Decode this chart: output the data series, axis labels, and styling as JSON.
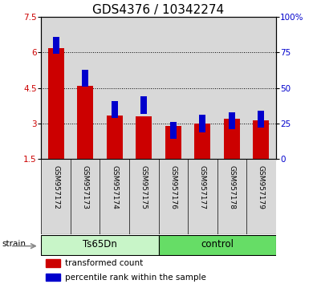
{
  "title": "GDS4376 / 10342274",
  "samples": [
    "GSM957172",
    "GSM957173",
    "GSM957174",
    "GSM957175",
    "GSM957176",
    "GSM957177",
    "GSM957178",
    "GSM957179"
  ],
  "red_values": [
    6.2,
    4.6,
    3.35,
    3.3,
    2.9,
    3.0,
    3.2,
    3.15
  ],
  "blue_values": [
    80,
    57,
    35,
    38,
    20,
    25,
    27,
    28
  ],
  "ylim_left": [
    1.5,
    7.5
  ],
  "ylim_right": [
    0,
    100
  ],
  "yticks_left": [
    1.5,
    3.0,
    4.5,
    6.0,
    7.5
  ],
  "yticks_right": [
    0,
    25,
    50,
    75,
    100
  ],
  "ytick_labels_left": [
    "1.5",
    "3",
    "4.5",
    "6",
    "7.5"
  ],
  "ytick_labels_right": [
    "0",
    "25",
    "50",
    "75",
    "100%"
  ],
  "group_info": [
    {
      "label": "Ts65Dn",
      "start": 0,
      "end": 3,
      "color": "#c8f5c8"
    },
    {
      "label": "control",
      "start": 4,
      "end": 7,
      "color": "#66dd66"
    }
  ],
  "strain_label": "strain",
  "bar_color_red": "#cc0000",
  "bar_color_blue": "#0000cc",
  "bar_bottom": 1.5,
  "bar_width": 0.55,
  "blue_bar_width": 0.22,
  "blue_bar_height": 0.12,
  "background_color": "#d8d8d8",
  "legend_items": [
    "transformed count",
    "percentile rank within the sample"
  ],
  "title_fontsize": 11,
  "tick_fontsize": 7.5,
  "xtick_fontsize": 6.5
}
